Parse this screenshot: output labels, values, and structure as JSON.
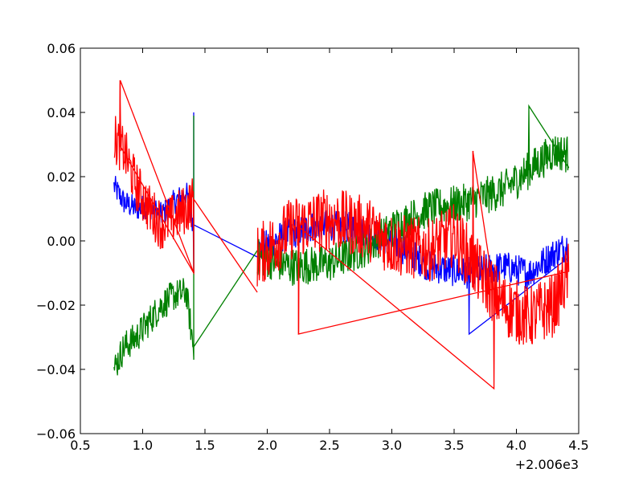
{
  "chart_data": {
    "type": "line",
    "title": "",
    "xlabel": "",
    "ylabel": "",
    "x_offset_label": "+2.006e3",
    "xlim": [
      0.5,
      4.5
    ],
    "ylim": [
      -0.06,
      0.06
    ],
    "xticks": [
      {
        "value": 0.5,
        "label": "0.5"
      },
      {
        "value": 1.0,
        "label": "1.0"
      },
      {
        "value": 1.5,
        "label": "1.5"
      },
      {
        "value": 2.0,
        "label": "2.0"
      },
      {
        "value": 2.5,
        "label": "2.5"
      },
      {
        "value": 3.0,
        "label": "3.0"
      },
      {
        "value": 3.5,
        "label": "3.5"
      },
      {
        "value": 4.0,
        "label": "4.0"
      },
      {
        "value": 4.5,
        "label": "4.5"
      }
    ],
    "yticks": [
      {
        "value": -0.06,
        "label": "−0.06"
      },
      {
        "value": -0.04,
        "label": "−0.04"
      },
      {
        "value": -0.02,
        "label": "−0.02"
      },
      {
        "value": 0.0,
        "label": "0.00"
      },
      {
        "value": 0.02,
        "label": "0.02"
      },
      {
        "value": 0.04,
        "label": "0.04"
      },
      {
        "value": 0.06,
        "label": "0.06"
      }
    ],
    "grid": false,
    "legend": "none",
    "series": [
      {
        "color": "#0000ff",
        "segments": [
          {
            "x_start": 0.77,
            "x_end": 1.41,
            "points": [
              [
                0.77,
                0.017
              ],
              [
                0.85,
                0.012
              ],
              [
                0.95,
                0.01
              ],
              [
                1.05,
                0.011
              ],
              [
                1.15,
                0.008
              ],
              [
                1.25,
                0.012
              ],
              [
                1.35,
                0.015
              ],
              [
                1.41,
                0.005
              ]
            ],
            "noise": 0.004,
            "spikes": [
              [
                1.41,
                0.04
              ],
              [
                1.41,
                -0.01
              ]
            ]
          },
          {
            "x_start": 1.41,
            "x_end": 1.92,
            "points": [
              [
                1.41,
                0.005
              ],
              [
                1.92,
                -0.005
              ]
            ],
            "noise": 0,
            "spikes": []
          },
          {
            "x_start": 1.92,
            "x_end": 4.42,
            "points": [
              [
                1.92,
                -0.003
              ],
              [
                2.1,
                0.001
              ],
              [
                2.4,
                0.005
              ],
              [
                2.7,
                0.004
              ],
              [
                3.0,
                0.0
              ],
              [
                3.3,
                -0.008
              ],
              [
                3.6,
                -0.01
              ],
              [
                3.9,
                -0.008
              ],
              [
                4.1,
                -0.01
              ],
              [
                4.3,
                -0.004
              ],
              [
                4.42,
                -0.001
              ]
            ],
            "noise": 0.005,
            "spikes": [
              [
                3.62,
                -0.029
              ]
            ]
          }
        ]
      },
      {
        "color": "#008000",
        "segments": [
          {
            "x_start": 0.77,
            "x_end": 1.41,
            "points": [
              [
                0.77,
                -0.04
              ],
              [
                0.85,
                -0.033
              ],
              [
                0.95,
                -0.03
              ],
              [
                1.05,
                -0.025
              ],
              [
                1.15,
                -0.02
              ],
              [
                1.25,
                -0.017
              ],
              [
                1.35,
                -0.016
              ],
              [
                1.41,
                -0.034
              ]
            ],
            "noise": 0.005,
            "spikes": [
              [
                1.41,
                0.039
              ],
              [
                1.41,
                -0.037
              ]
            ]
          },
          {
            "x_start": 1.41,
            "x_end": 1.92,
            "points": [
              [
                1.41,
                -0.033
              ],
              [
                1.92,
                -0.003
              ]
            ],
            "noise": 0,
            "spikes": []
          },
          {
            "x_start": 1.92,
            "x_end": 4.42,
            "points": [
              [
                1.92,
                -0.005
              ],
              [
                2.2,
                -0.008
              ],
              [
                2.5,
                -0.007
              ],
              [
                2.8,
                -0.002
              ],
              [
                3.05,
                0.005
              ],
              [
                3.3,
                0.01
              ],
              [
                3.6,
                0.012
              ],
              [
                3.9,
                0.016
              ],
              [
                4.1,
                0.022
              ],
              [
                4.3,
                0.028
              ],
              [
                4.42,
                0.027
              ]
            ],
            "noise": 0.006,
            "spikes": [
              [
                4.1,
                0.042
              ]
            ]
          }
        ]
      },
      {
        "color": "#ff0000",
        "segments": [
          {
            "x_start": 0.77,
            "x_end": 1.41,
            "points": [
              [
                0.77,
                0.032
              ],
              [
                0.85,
                0.028
              ],
              [
                0.95,
                0.017
              ],
              [
                1.05,
                0.01
              ],
              [
                1.15,
                0.005
              ],
              [
                1.25,
                0.007
              ],
              [
                1.35,
                0.01
              ],
              [
                1.41,
                0.013
              ]
            ],
            "noise": 0.008,
            "spikes": [
              [
                0.82,
                0.05
              ],
              [
                1.41,
                -0.01
              ]
            ]
          },
          {
            "x_start": 1.41,
            "x_end": 1.92,
            "points": [
              [
                1.41,
                0.013
              ],
              [
                1.92,
                -0.016
              ]
            ],
            "noise": 0,
            "spikes": []
          },
          {
            "x_start": 1.92,
            "x_end": 4.42,
            "points": [
              [
                1.92,
                -0.005
              ],
              [
                2.2,
                0.004
              ],
              [
                2.5,
                0.007
              ],
              [
                2.8,
                0.004
              ],
              [
                3.0,
                -0.001
              ],
              [
                3.3,
                -0.003
              ],
              [
                3.5,
                0.002
              ],
              [
                3.7,
                -0.01
              ],
              [
                3.9,
                -0.02
              ],
              [
                4.1,
                -0.024
              ],
              [
                4.3,
                -0.02
              ],
              [
                4.42,
                -0.01
              ]
            ],
            "noise": 0.01,
            "spikes": [
              [
                2.25,
                -0.029
              ],
              [
                3.82,
                -0.046
              ],
              [
                3.65,
                0.028
              ]
            ]
          }
        ]
      }
    ]
  }
}
